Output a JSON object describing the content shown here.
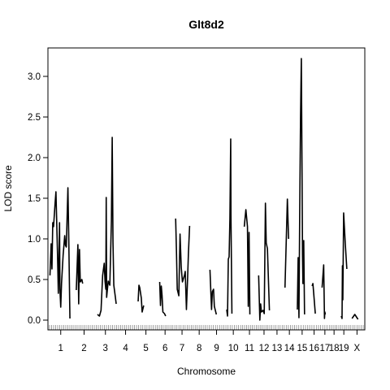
{
  "chart_data": {
    "type": "line",
    "title": "Glt8d2",
    "xlabel": "Chromosome",
    "ylabel": "LOD score",
    "ylim": [
      -0.12,
      3.35
    ],
    "yticks": [
      0.0,
      0.5,
      1.0,
      1.5,
      2.0,
      2.5,
      3.0
    ],
    "ytick_labels": [
      "0.0",
      "0.5",
      "1.0",
      "1.5",
      "2.0",
      "2.5",
      "3.0"
    ],
    "chromosomes": [
      "1",
      "2",
      "3",
      "4",
      "5",
      "6",
      "7",
      "8",
      "9",
      "10",
      "11",
      "12",
      "13",
      "14",
      "15",
      "16",
      "17",
      "18",
      "19",
      "X"
    ],
    "chromosome_lengths": [
      28.0,
      25.5,
      23.0,
      22.5,
      23.5,
      19.5,
      18.0,
      20.0,
      18.5,
      18.5,
      17.0,
      14.5,
      13.0,
      13.0,
      14.0,
      11.0,
      11.0,
      7.0,
      12.5,
      15.5
    ],
    "series": [
      {
        "segments": [
          {
            "chr": "1",
            "points": [
              [
                0.5,
                0.55
              ],
              [
                2,
                0.94
              ],
              [
                3,
                0.63
              ],
              [
                4,
                1.2
              ],
              [
                5,
                1.15
              ],
              [
                7,
                1.45
              ],
              [
                8,
                1.58
              ],
              [
                10,
                0.8
              ],
              [
                11,
                0.33
              ],
              [
                12.5,
                1.2
              ],
              [
                13,
                0.38
              ],
              [
                14,
                0.16
              ],
              [
                15,
                0.45
              ],
              [
                17,
                0.8
              ],
              [
                19,
                1.04
              ],
              [
                20,
                0.92
              ],
              [
                21,
                0.9
              ],
              [
                23,
                1.63
              ],
              [
                24,
                1.05
              ],
              [
                25.5,
                0.02
              ]
            ]
          },
          {
            "chr": "2",
            "points": [
              [
                3,
                0.37
              ],
              [
                5,
                0.93
              ],
              [
                6,
                0.2
              ],
              [
                7,
                0.87
              ],
              [
                8,
                0.47
              ],
              [
                10,
                0.5
              ],
              [
                11,
                0.45
              ]
            ]
          },
          {
            "chr": "3",
            "points": [
              [
                1.5,
                0.07
              ],
              [
                4,
                0.05
              ],
              [
                6,
                0.12
              ],
              [
                8,
                0.55
              ],
              [
                10,
                0.7
              ],
              [
                11,
                0.48
              ],
              [
                12,
                0.38
              ],
              [
                12.5,
                1.51
              ],
              [
                13,
                0.28
              ],
              [
                15,
                0.48
              ],
              [
                17,
                0.43
              ],
              [
                19,
                1.22
              ],
              [
                20,
                2.25
              ],
              [
                21,
                0.95
              ],
              [
                22,
                0.43
              ],
              [
                24,
                0.28
              ],
              [
                25,
                0.2
              ]
            ]
          },
          {
            "chr": "5",
            "points": [
              [
                2,
                0.23
              ],
              [
                3,
                0.43
              ],
              [
                4,
                0.4
              ],
              [
                6,
                0.27
              ],
              [
                7,
                0.1
              ],
              [
                9,
                0.18
              ]
            ]
          },
          {
            "chr": "6",
            "points": [
              [
                3,
                0.47
              ],
              [
                4,
                0.18
              ],
              [
                5,
                0.42
              ],
              [
                6,
                0.3
              ],
              [
                7,
                0.1
              ],
              [
                9,
                0.08
              ],
              [
                10.5,
                0.05
              ]
            ]
          },
          {
            "chr": "7",
            "points": [
              [
                1,
                1.25
              ],
              [
                2,
                0.85
              ],
              [
                3,
                0.38
              ],
              [
                5,
                0.3
              ],
              [
                6.5,
                1.06
              ],
              [
                8,
                0.65
              ],
              [
                9.5,
                0.47
              ],
              [
                12,
                0.55
              ],
              [
                13,
                0.6
              ],
              [
                14.5,
                0.13
              ],
              [
                16,
                0.52
              ],
              [
                17,
                0.82
              ],
              [
                18.5,
                1.16
              ]
            ]
          },
          {
            "chr": "9",
            "points": [
              [
                1,
                0.62
              ],
              [
                2,
                0.37
              ],
              [
                3,
                0.13
              ],
              [
                4,
                0.35
              ],
              [
                5.5,
                0.38
              ],
              [
                6.5,
                0.17
              ],
              [
                9,
                0.07
              ]
            ]
          },
          {
            "chr": "10",
            "points": [
              [
                1,
                0.13
              ],
              [
                2,
                0.05
              ],
              [
                3,
                0.75
              ],
              [
                4,
                0.78
              ],
              [
                5,
                1.25
              ],
              [
                6,
                2.23
              ],
              [
                6.3,
                1.3
              ],
              [
                7.5,
                0.08
              ]
            ]
          },
          {
            "chr": "11",
            "points": [
              [
                2,
                1.15
              ],
              [
                4,
                1.36
              ],
              [
                6,
                1.15
              ],
              [
                7,
                0.17
              ],
              [
                8,
                1.08
              ],
              [
                9,
                0.07
              ]
            ]
          },
          {
            "chr": "12",
            "points": [
              [
                0.5,
                0.55
              ],
              [
                2,
                0.0
              ],
              [
                3,
                0.2
              ],
              [
                4,
                0.1
              ],
              [
                6,
                0.12
              ],
              [
                7.5,
                0.08
              ],
              [
                9,
                1.44
              ],
              [
                10,
                0.95
              ],
              [
                11.5,
                0.88
              ],
              [
                14,
                0.12
              ]
            ]
          },
          {
            "chr": "14",
            "points": [
              [
                1,
                0.4
              ],
              [
                4,
                1.49
              ],
              [
                5.5,
                1.0
              ]
            ]
          },
          {
            "chr": "15",
            "points": [
              [
                1,
                0.13
              ],
              [
                2,
                0.77
              ],
              [
                3,
                0.03
              ],
              [
                4,
                1.38
              ],
              [
                5,
                2.5
              ],
              [
                6,
                3.22
              ],
              [
                7.5,
                0.8
              ],
              [
                8,
                0.45
              ],
              [
                9,
                0.98
              ],
              [
                10,
                0.07
              ]
            ]
          },
          {
            "chr": "16",
            "points": [
              [
                3,
                0.42
              ],
              [
                4,
                0.45
              ],
              [
                5,
                0.33
              ],
              [
                7,
                0.08
              ]
            ]
          },
          {
            "chr": "17",
            "points": [
              [
                2,
                0.4
              ],
              [
                4,
                0.68
              ],
              [
                5,
                0.02
              ],
              [
                5.5,
                0.1
              ],
              [
                6,
                0.07
              ]
            ]
          },
          {
            "chr": "19",
            "points": [
              [
                3,
                0.05
              ],
              [
                4,
                0.02
              ],
              [
                4.5,
                0.67
              ],
              [
                5,
                0.25
              ],
              [
                6,
                1.32
              ],
              [
                8,
                0.95
              ],
              [
                10,
                0.63
              ]
            ]
          },
          {
            "chr": "X",
            "points": [
              [
                1.5,
                0.02
              ],
              [
                5,
                0.07
              ],
              [
                9,
                0.01
              ]
            ]
          }
        ]
      }
    ]
  }
}
